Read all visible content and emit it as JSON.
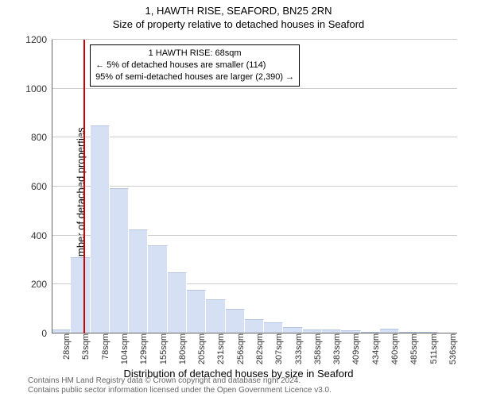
{
  "titles": {
    "main": "1, HAWTH RISE, SEAFORD, BN25 2RN",
    "sub": "Size of property relative to detached houses in Seaford",
    "y_axis": "Number of detached properties",
    "x_axis": "Distribution of detached houses by size in Seaford"
  },
  "chart": {
    "type": "histogram",
    "background_color": "#ffffff",
    "grid_color": "#cccccc",
    "axis_color": "#666666",
    "bar_fill": "#d6e0f5",
    "bar_stroke": "#b5c4e3",
    "ylim": [
      0,
      1200
    ],
    "ytick_step": 200,
    "x_labels": [
      "28sqm",
      "53sqm",
      "78sqm",
      "104sqm",
      "129sqm",
      "155sqm",
      "180sqm",
      "205sqm",
      "231sqm",
      "256sqm",
      "282sqm",
      "307sqm",
      "333sqm",
      "358sqm",
      "383sqm",
      "409sqm",
      "434sqm",
      "460sqm",
      "485sqm",
      "511sqm",
      "536sqm"
    ],
    "bar_values": [
      15,
      310,
      850,
      595,
      425,
      360,
      250,
      180,
      140,
      100,
      60,
      45,
      25,
      15,
      15,
      12,
      8,
      18,
      5,
      5,
      3
    ],
    "marker": {
      "position_index": 1.65,
      "color": "#cc0000"
    },
    "info_box": {
      "line1": "1 HAWTH RISE: 68sqm",
      "line2": "← 5% of detached houses are smaller (114)",
      "line3": "95% of semi-detached houses are larger (2,390) →"
    }
  },
  "footer": {
    "line1": "Contains HM Land Registry data © Crown copyright and database right 2024.",
    "line2": "Contains public sector information licensed under the Open Government Licence v3.0."
  }
}
